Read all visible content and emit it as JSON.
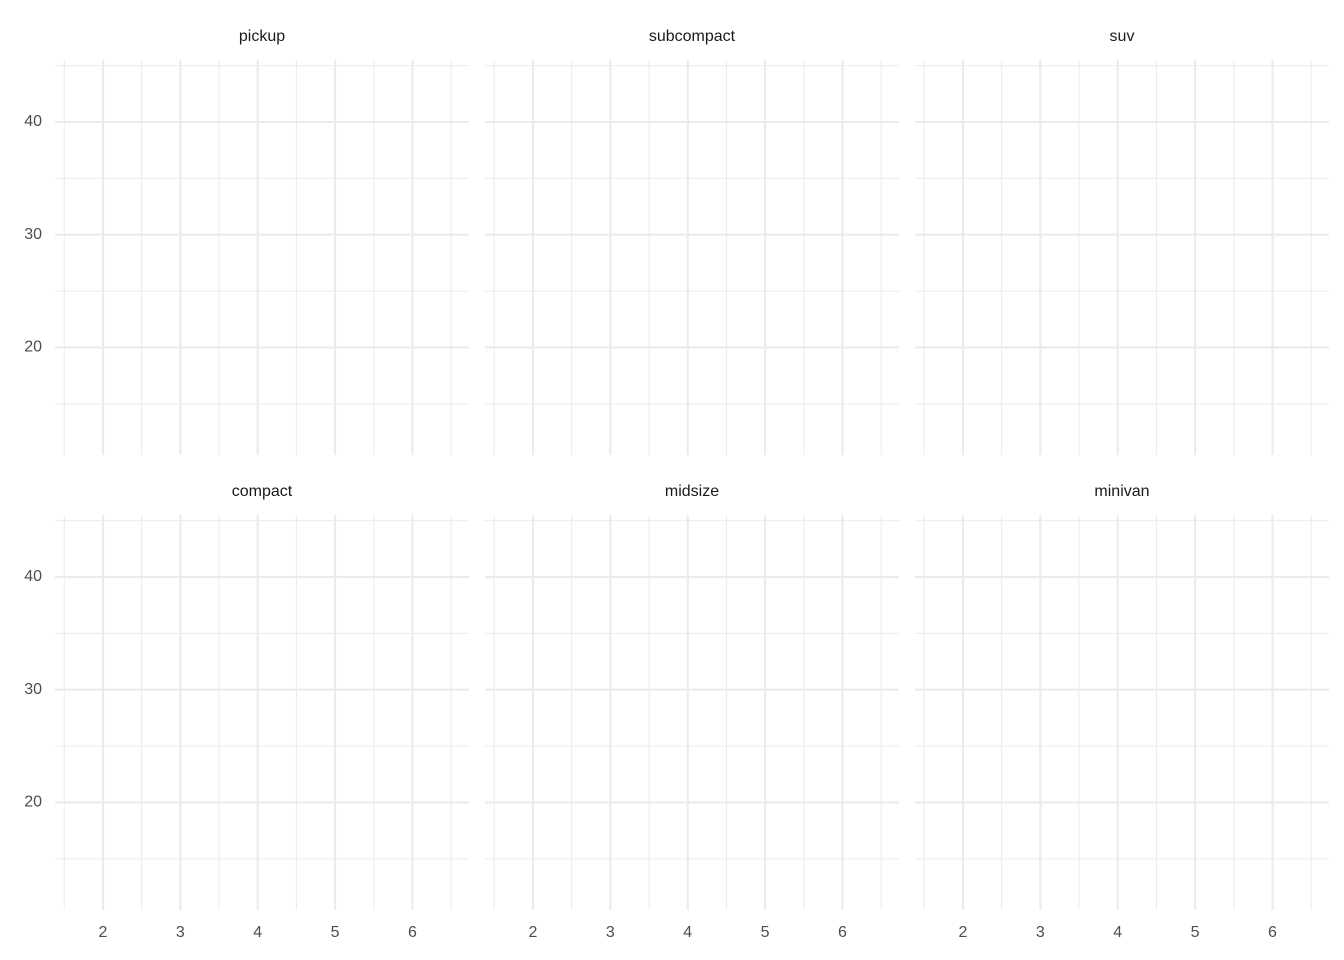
{
  "chart_data": {
    "type": "scatter",
    "facets": [
      "pickup",
      "subcompact",
      "suv",
      "compact",
      "midsize",
      "minivan"
    ],
    "xlim": [
      1.38,
      6.73
    ],
    "xticks": [
      2,
      3,
      4,
      5,
      6
    ],
    "ylim": [
      10.46,
      45.5
    ],
    "yticks": [
      20,
      30,
      40
    ],
    "grid": true,
    "minor_grid": true,
    "grid_color": "#ebebeb"
  }
}
